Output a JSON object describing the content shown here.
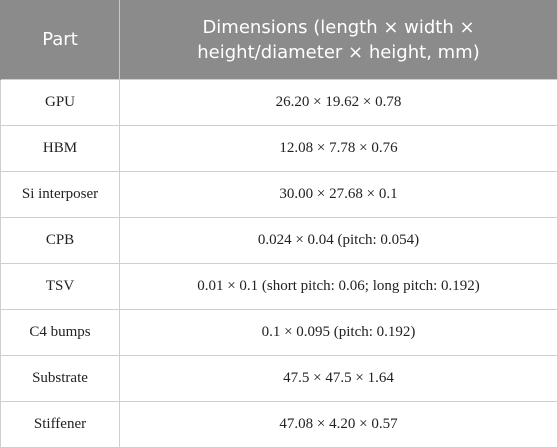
{
  "table": {
    "header": [
      "Part",
      "Dimensions (length × width × height/diameter × height, mm)"
    ],
    "rows": [
      [
        "GPU",
        "26.20 × 19.62 × 0.78"
      ],
      [
        "HBM",
        "12.08 × 7.78 × 0.76"
      ],
      [
        "Si interposer",
        "30.00 × 27.68 × 0.1"
      ],
      [
        "CPB",
        "0.024 × 0.04 (pitch: 0.054)"
      ],
      [
        "TSV",
        "0.01 × 0.1 (short pitch: 0.06; long pitch: 0.192)"
      ],
      [
        "C4 bumps",
        "0.1 × 0.095 (pitch: 0.192)"
      ],
      [
        "Substrate",
        "47.5 × 47.5 × 1.64"
      ],
      [
        "Stiffener",
        "47.08 × 4.20 × 0.57"
      ]
    ]
  }
}
